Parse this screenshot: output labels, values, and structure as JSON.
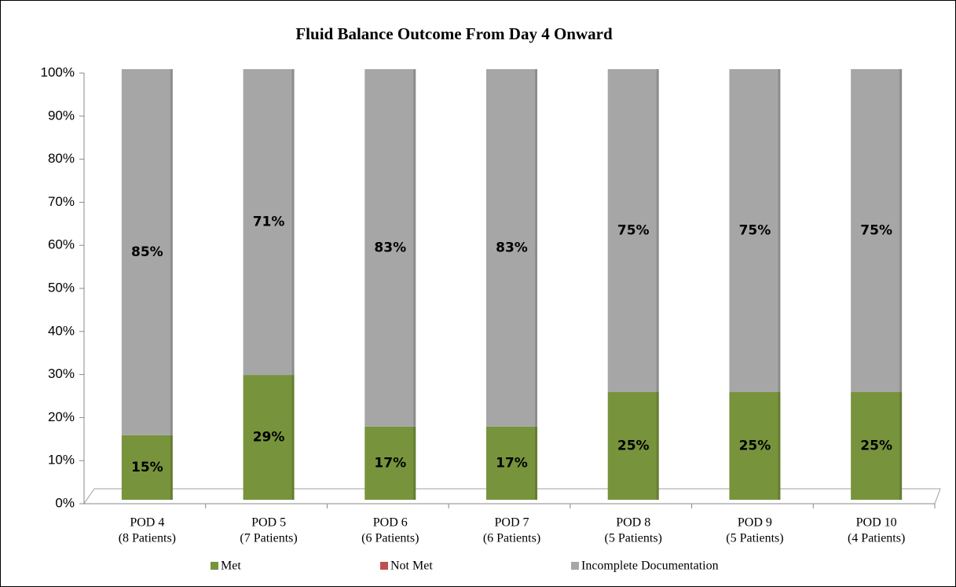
{
  "chart_data": {
    "type": "stacked_bar",
    "title": "Fluid Balance Outcome From Day 4 Onward",
    "categories": [
      [
        "POD 4",
        "(8 Patients)"
      ],
      [
        "POD 5",
        "(7 Patients)"
      ],
      [
        "POD 6",
        "(6 Patients)"
      ],
      [
        "POD 7",
        "(6 Patients)"
      ],
      [
        "POD 8",
        "(5 Patients)"
      ],
      [
        "POD 9",
        "(5 Patients)"
      ],
      [
        "POD 10",
        "(4 Patients)"
      ]
    ],
    "series": [
      {
        "name": "Met",
        "color": "#77933c",
        "values": [
          15,
          29,
          17,
          17,
          25,
          25,
          25
        ],
        "value_labels": [
          "15%",
          "29%",
          "17%",
          "17%",
          "25%",
          "25%",
          "25%"
        ]
      },
      {
        "name": "Not Met",
        "color": "#c0504d",
        "values": [
          0,
          0,
          0,
          0,
          0,
          0,
          0
        ]
      },
      {
        "name": "Incomplete Documentation",
        "color": "#a6a6a6",
        "values": [
          85,
          71,
          83,
          83,
          75,
          75,
          75
        ],
        "value_labels": [
          "85%",
          "71%",
          "83%",
          "83%",
          "75%",
          "75%",
          "75%"
        ]
      }
    ],
    "ylim": [
      0,
      100
    ],
    "yticks": [
      {
        "value": 0,
        "label": "0%"
      },
      {
        "value": 10,
        "label": "10%"
      },
      {
        "value": 20,
        "label": "20%"
      },
      {
        "value": 30,
        "label": "30%"
      },
      {
        "value": 40,
        "label": "40%"
      },
      {
        "value": 50,
        "label": "50%"
      },
      {
        "value": 60,
        "label": "60%"
      },
      {
        "value": 70,
        "label": "70%"
      },
      {
        "value": 80,
        "label": "80%"
      },
      {
        "value": 90,
        "label": "90%"
      },
      {
        "value": 100,
        "label": "100%"
      }
    ],
    "legend": "bottom"
  }
}
